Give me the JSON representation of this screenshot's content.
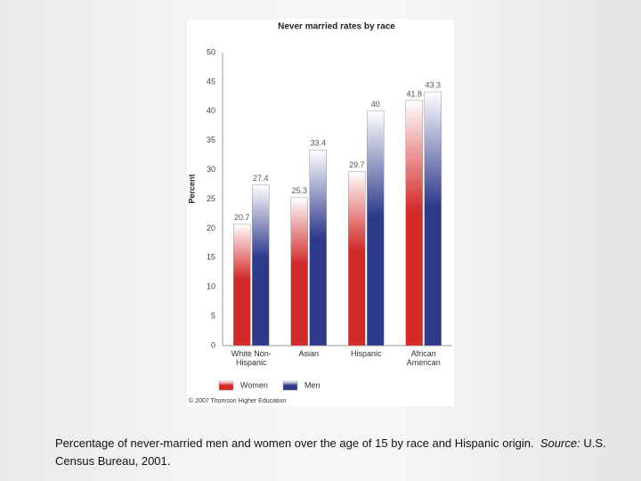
{
  "chart_data": {
    "type": "bar",
    "title": "Never married rates by race",
    "ylabel": "Percent",
    "categories": [
      "White Non-Hispanic",
      "Asian",
      "Hispanic",
      "African American"
    ],
    "series": [
      {
        "name": "Women",
        "color": "#d42a2a",
        "values": [
          20.7,
          25.3,
          29.7,
          41.8
        ]
      },
      {
        "name": "Men",
        "color": "#2e3a8c",
        "values": [
          27.4,
          33.4,
          40,
          43.3
        ]
      }
    ],
    "ylim": [
      0,
      50
    ],
    "yticks": [
      0,
      5,
      10,
      15,
      20,
      25,
      30,
      35,
      40,
      45,
      50
    ],
    "grid": false,
    "copyright": "© 2007 Thomson Higher Education"
  },
  "caption": {
    "text": "Percentage of never-married men and women over the age of 15 by race and Hispanic origin.",
    "source_label": "Source:",
    "source": "U.S. Census Bureau, 2001."
  }
}
